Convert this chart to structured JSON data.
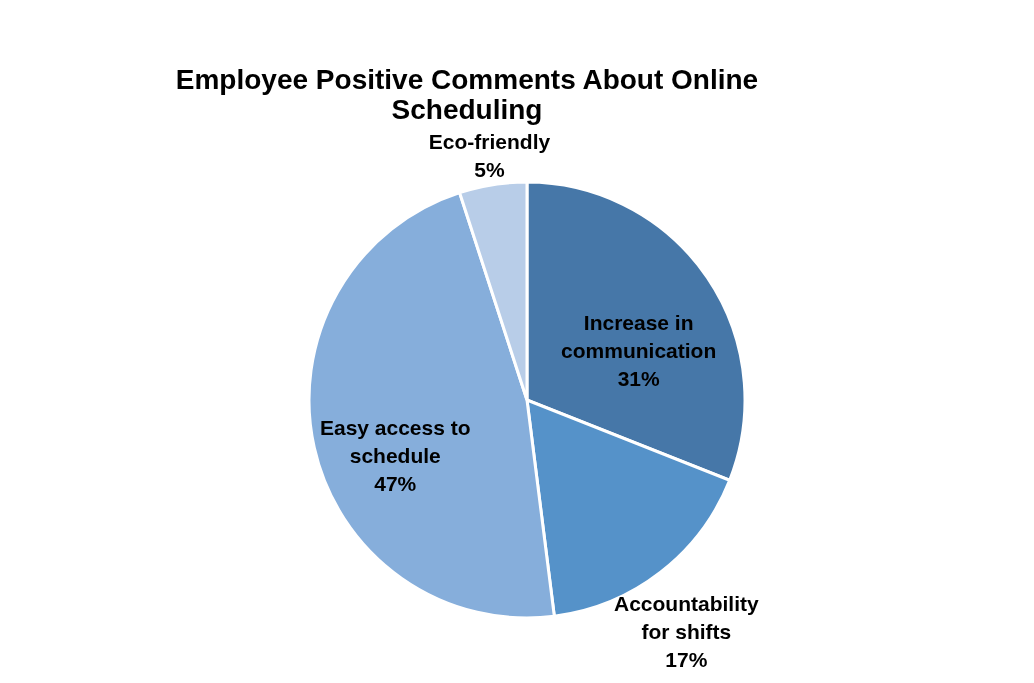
{
  "chart_data": {
    "type": "pie",
    "title": "Employee Positive Comments About Online Scheduling",
    "categories": [
      "Increase in communication",
      "Accountability for shifts",
      "Easy access to schedule",
      "Eco-friendly"
    ],
    "values": [
      31,
      17,
      47,
      5
    ],
    "value_labels": [
      "31%",
      "17%",
      "47%",
      "5%"
    ],
    "colors": [
      "#4677a8",
      "#5592c9",
      "#86aedb",
      "#b8cde8"
    ],
    "legend": false
  }
}
